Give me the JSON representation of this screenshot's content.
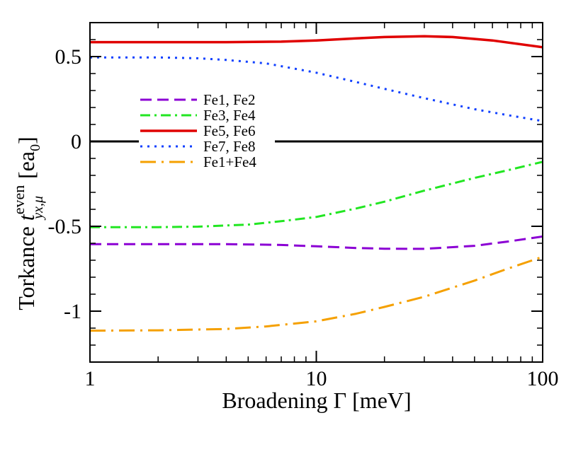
{
  "chart_data": {
    "type": "line",
    "x_scale": "log",
    "xlim": [
      1,
      100
    ],
    "ylim": [
      -1.3,
      0.7
    ],
    "xlabel": "Broadening Γ [meV]",
    "ylabel_prefix": "Torkance ",
    "ylabel_symbol": "t",
    "ylabel_superscript": "even",
    "ylabel_subscript": "yx,μ",
    "ylabel_unit_open": " [ea",
    "ylabel_unit_sub": "0",
    "ylabel_unit_close": "]",
    "x_ticks": [
      {
        "value": 1,
        "label": "1"
      },
      {
        "value": 10,
        "label": "10"
      },
      {
        "value": 100,
        "label": "100"
      }
    ],
    "y_ticks": [
      {
        "value": 0.5,
        "label": "0.5"
      },
      {
        "value": 0,
        "label": "0"
      },
      {
        "value": -0.5,
        "label": "-0.5"
      },
      {
        "value": -1,
        "label": "-1"
      }
    ],
    "zero_line": true,
    "legend_position": "center-left",
    "series": [
      {
        "name": "Fe1, Fe2",
        "color": "#8B00D4",
        "style": "dashed",
        "x": [
          1,
          2,
          4,
          7,
          10,
          15,
          20,
          30,
          50,
          70,
          100
        ],
        "y": [
          -0.605,
          -0.605,
          -0.605,
          -0.61,
          -0.618,
          -0.628,
          -0.632,
          -0.633,
          -0.615,
          -0.59,
          -0.56
        ]
      },
      {
        "name": "Fe3, Fe4",
        "color": "#22E622",
        "style": "dashdot",
        "x": [
          1,
          2,
          3,
          5,
          7,
          10,
          15,
          20,
          30,
          50,
          70,
          100
        ],
        "y": [
          -0.505,
          -0.505,
          -0.502,
          -0.49,
          -0.47,
          -0.445,
          -0.395,
          -0.355,
          -0.29,
          -0.215,
          -0.17,
          -0.12
        ]
      },
      {
        "name": "Fe5, Fe6",
        "color": "#E00000",
        "style": "solid",
        "x": [
          1,
          2,
          4,
          7,
          10,
          15,
          20,
          30,
          40,
          60,
          100
        ],
        "y": [
          0.585,
          0.585,
          0.585,
          0.588,
          0.595,
          0.607,
          0.615,
          0.62,
          0.615,
          0.595,
          0.555
        ]
      },
      {
        "name": "Fe7, Fe8",
        "color": "#1040FF",
        "style": "dotted",
        "x": [
          1,
          2,
          3,
          4,
          6,
          10,
          15,
          20,
          30,
          50,
          70,
          100
        ],
        "y": [
          0.495,
          0.495,
          0.49,
          0.48,
          0.46,
          0.405,
          0.35,
          0.31,
          0.255,
          0.19,
          0.155,
          0.12
        ]
      },
      {
        "name": "Fe1+Fe4",
        "color": "#F5A000",
        "style": "longdashdot",
        "x": [
          1,
          2,
          4,
          6,
          10,
          15,
          20,
          30,
          50,
          70,
          100
        ],
        "y": [
          -1.115,
          -1.113,
          -1.105,
          -1.09,
          -1.06,
          -1.015,
          -0.975,
          -0.915,
          -0.82,
          -0.75,
          -0.68
        ]
      }
    ]
  }
}
